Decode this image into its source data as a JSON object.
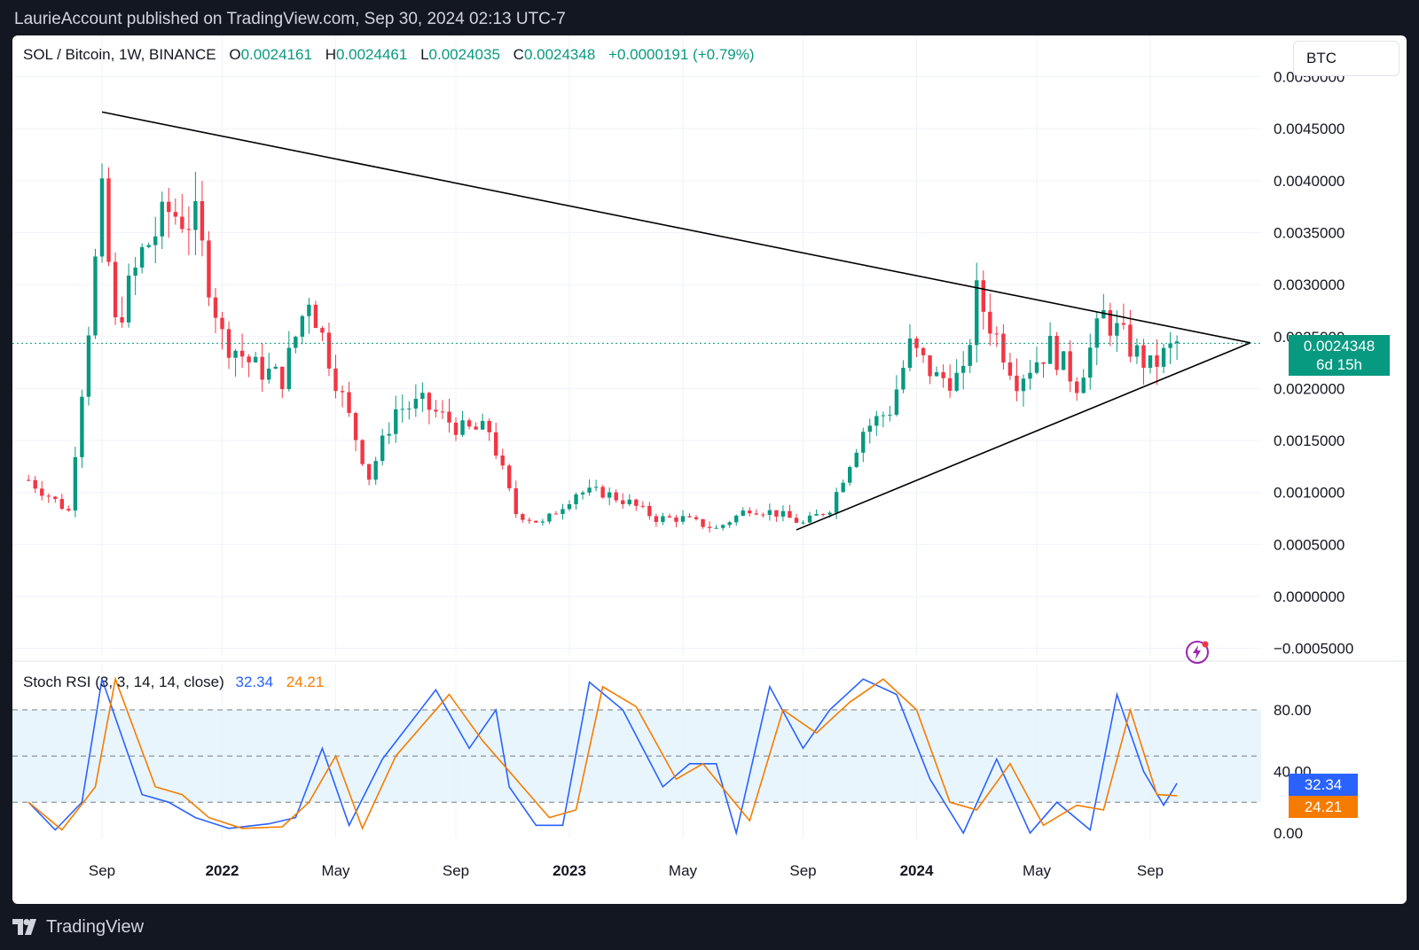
{
  "header": {
    "publisher_line": "LaurieAccount published on TradingView.com, Sep 30, 2024 02:13 UTC-7"
  },
  "legend": {
    "symbol": "SOL / Bitcoin, 1W, BINANCE",
    "open_key": "O",
    "open": "0.0024161",
    "high_key": "H",
    "high": "0.0024461",
    "low_key": "L",
    "low": "0.0024035",
    "close_key": "C",
    "close": "0.0024348",
    "change": "+0.0000191 (+0.79%)"
  },
  "ticker_button": "BTC",
  "price_label": {
    "price": "0.0024348",
    "countdown": "6d 15h"
  },
  "stoch": {
    "name": "Stoch RSI (3, 3, 14, 14, close)",
    "k": "32.34",
    "d": "24.21"
  },
  "footer": {
    "brand": "TradingView"
  },
  "colors": {
    "up": "#089981",
    "down": "#f23645",
    "k_line": "#2962ff",
    "d_line": "#f57c00",
    "band": "#e3f2fd"
  },
  "icons": [
    "flash-icon",
    "tradingview-logo-icon"
  ],
  "chart_data": [
    {
      "type": "candlestick",
      "title": "SOL / Bitcoin, 1W, BINANCE",
      "x_tick_labels": [
        "Sep",
        "2022",
        "May",
        "Sep",
        "2023",
        "May",
        "Sep",
        "2024",
        "May",
        "Sep"
      ],
      "y_tick_labels": [
        "0.0050000",
        "0.0045000",
        "0.0040000",
        "0.0035000",
        "0.0030000",
        "0.0025000",
        "0.0020000",
        "0.0015000",
        "0.0010000",
        "0.0005000",
        "0.0000000",
        "−0.0005000"
      ],
      "ylim": [
        -0.0005,
        0.0051
      ],
      "grid": true,
      "last_price": 0.0024348,
      "trendlines": [
        {
          "name": "upper",
          "points": [
            [
              "2021-08-30",
              0.00466
            ],
            [
              "2024-12-16",
              0.00244
            ]
          ]
        },
        {
          "name": "lower",
          "points": [
            [
              "2023-08-28",
              0.00064
            ],
            [
              "2024-12-16",
              0.00244
            ]
          ]
        }
      ],
      "close_path_points": [
        [
          "2021-06-14",
          0.00112
        ],
        [
          "2021-07-26",
          0.00082
        ],
        [
          "2021-08-30",
          0.0038
        ],
        [
          "2021-09-13",
          0.0026
        ],
        [
          "2021-10-11",
          0.0033
        ],
        [
          "2021-11-08",
          0.0037
        ],
        [
          "2021-12-06",
          0.0036
        ],
        [
          "2022-01-03",
          0.0025
        ],
        [
          "2022-02-07",
          0.0022
        ],
        [
          "2022-03-07",
          0.0021
        ],
        [
          "2022-04-04",
          0.0029
        ],
        [
          "2022-05-02",
          0.0021
        ],
        [
          "2022-06-06",
          0.00115
        ],
        [
          "2022-07-04",
          0.0018
        ],
        [
          "2022-08-01",
          0.00185
        ],
        [
          "2022-09-12",
          0.0016
        ],
        [
          "2022-10-10",
          0.0016
        ],
        [
          "2022-11-07",
          0.0008
        ],
        [
          "2022-12-05",
          0.0007
        ],
        [
          "2023-01-09",
          0.001
        ],
        [
          "2023-02-06",
          0.001
        ],
        [
          "2023-03-06",
          0.0009
        ],
        [
          "2023-04-03",
          0.00075
        ],
        [
          "2023-05-01",
          0.00075
        ],
        [
          "2023-06-05",
          0.00065
        ],
        [
          "2023-07-10",
          0.00085
        ],
        [
          "2023-08-07",
          0.0008
        ],
        [
          "2023-09-04",
          0.0007
        ],
        [
          "2023-10-02",
          0.00085
        ],
        [
          "2023-11-06",
          0.0016
        ],
        [
          "2023-12-04",
          0.0018
        ],
        [
          "2023-12-25",
          0.0024
        ],
        [
          "2024-01-22",
          0.0021
        ],
        [
          "2024-02-19",
          0.0021
        ],
        [
          "2024-03-04",
          0.0029
        ],
        [
          "2024-03-25",
          0.0025
        ],
        [
          "2024-04-15",
          0.0021
        ],
        [
          "2024-05-20",
          0.0024
        ],
        [
          "2024-06-17",
          0.00205
        ],
        [
          "2024-07-15",
          0.0027
        ],
        [
          "2024-08-12",
          0.0024
        ],
        [
          "2024-09-02",
          0.0022
        ],
        [
          "2024-09-30",
          0.0024348
        ]
      ]
    },
    {
      "type": "line",
      "title": "Stoch RSI (3, 3, 14, 14, close)",
      "ylim": [
        0,
        100
      ],
      "y_tick_labels": [
        "80.00",
        "40.00",
        "0.00"
      ],
      "bands": {
        "upper": 80,
        "middle": 50,
        "lower": 20
      },
      "series": [
        {
          "name": "K",
          "points": [
            [
              "2021-06-14",
              20
            ],
            [
              "2021-07-12",
              2
            ],
            [
              "2021-08-09",
              20
            ],
            [
              "2021-08-30",
              100
            ],
            [
              "2021-10-11",
              25
            ],
            [
              "2021-11-08",
              20
            ],
            [
              "2021-12-06",
              10
            ],
            [
              "2022-01-10",
              3
            ],
            [
              "2022-02-21",
              6
            ],
            [
              "2022-03-21",
              10
            ],
            [
              "2022-04-18",
              55
            ],
            [
              "2022-05-16",
              5
            ],
            [
              "2022-06-20",
              48
            ],
            [
              "2022-08-15",
              93
            ],
            [
              "2022-09-19",
              55
            ],
            [
              "2022-10-17",
              80
            ],
            [
              "2022-10-31",
              30
            ],
            [
              "2022-11-28",
              5
            ],
            [
              "2022-12-26",
              5
            ],
            [
              "2023-01-23",
              98
            ],
            [
              "2023-02-27",
              80
            ],
            [
              "2023-04-10",
              30
            ],
            [
              "2023-05-08",
              45
            ],
            [
              "2023-06-05",
              45
            ],
            [
              "2023-06-26",
              0
            ],
            [
              "2023-07-31",
              95
            ],
            [
              "2023-09-04",
              55
            ],
            [
              "2023-10-02",
              80
            ],
            [
              "2023-11-06",
              100
            ],
            [
              "2023-12-11",
              90
            ],
            [
              "2024-01-15",
              35
            ],
            [
              "2024-02-19",
              0
            ],
            [
              "2024-03-25",
              48
            ],
            [
              "2024-04-29",
              0
            ],
            [
              "2024-05-27",
              20
            ],
            [
              "2024-07-01",
              2
            ],
            [
              "2024-07-29",
              90
            ],
            [
              "2024-08-26",
              40
            ],
            [
              "2024-09-16",
              18
            ],
            [
              "2024-09-30",
              32.34
            ]
          ]
        },
        {
          "name": "D",
          "points": [
            [
              "2021-06-14",
              20
            ],
            [
              "2021-07-19",
              2
            ],
            [
              "2021-08-23",
              30
            ],
            [
              "2021-09-13",
              100
            ],
            [
              "2021-10-25",
              30
            ],
            [
              "2021-11-22",
              25
            ],
            [
              "2021-12-20",
              10
            ],
            [
              "2022-01-24",
              3
            ],
            [
              "2022-03-07",
              4
            ],
            [
              "2022-04-04",
              20
            ],
            [
              "2022-05-02",
              50
            ],
            [
              "2022-05-30",
              3
            ],
            [
              "2022-07-04",
              50
            ],
            [
              "2022-08-29",
              90
            ],
            [
              "2022-10-03",
              60
            ],
            [
              "2022-11-07",
              35
            ],
            [
              "2022-12-12",
              10
            ],
            [
              "2023-01-09",
              15
            ],
            [
              "2023-02-06",
              95
            ],
            [
              "2023-03-13",
              82
            ],
            [
              "2023-04-24",
              35
            ],
            [
              "2023-05-22",
              45
            ],
            [
              "2023-07-10",
              8
            ],
            [
              "2023-08-14",
              80
            ],
            [
              "2023-09-18",
              65
            ],
            [
              "2023-10-23",
              85
            ],
            [
              "2023-11-27",
              100
            ],
            [
              "2024-01-01",
              80
            ],
            [
              "2024-02-05",
              20
            ],
            [
              "2024-03-04",
              15
            ],
            [
              "2024-04-08",
              45
            ],
            [
              "2024-05-13",
              5
            ],
            [
              "2024-06-17",
              18
            ],
            [
              "2024-07-15",
              15
            ],
            [
              "2024-08-12",
              80
            ],
            [
              "2024-09-09",
              25
            ],
            [
              "2024-09-30",
              24.21
            ]
          ]
        }
      ]
    }
  ]
}
